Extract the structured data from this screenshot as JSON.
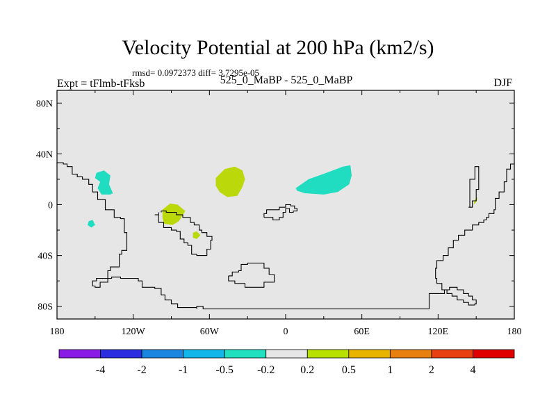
{
  "chart_data": {
    "type": "heatmap",
    "title": "Velocity Potential at 200 hPa (km2/s)",
    "stats_line": "rmsd= 0.0972373 diff= 3.7295e-05",
    "left_label": "Expt = tFlmb-tFksb",
    "center_label": "525_0_MaBP - 525_0_MaBP",
    "right_label": "DJF",
    "xlim": [
      -180,
      180
    ],
    "ylim": [
      -90,
      90
    ],
    "x_ticks": [
      {
        "value": -180,
        "label": "180"
      },
      {
        "value": -120,
        "label": "120W"
      },
      {
        "value": -60,
        "label": "60W"
      },
      {
        "value": 0,
        "label": "0"
      },
      {
        "value": 60,
        "label": "60E"
      },
      {
        "value": 120,
        "label": "120E"
      },
      {
        "value": 180,
        "label": "180"
      }
    ],
    "y_ticks": [
      {
        "value": 80,
        "label": "80N"
      },
      {
        "value": 40,
        "label": "40N"
      },
      {
        "value": 0,
        "label": "0"
      },
      {
        "value": -40,
        "label": "40S"
      },
      {
        "value": -80,
        "label": "80S"
      }
    ],
    "background_color": "#e6e6e6",
    "colorbar": {
      "levels": [
        "-4",
        "-2",
        "-1",
        "-0.5",
        "-0.2",
        "0.2",
        "0.5",
        "1",
        "2",
        "4"
      ],
      "colors": [
        "#8a1be6",
        "#2a2ee0",
        "#1a86e0",
        "#12b6e8",
        "#20e0c0",
        "#e6e6e6",
        "#b8e000",
        "#e8b400",
        "#e88010",
        "#e84010",
        "#e00000"
      ]
    },
    "regions": [
      {
        "name": "positive-region-atlantic",
        "class": "0.2 to 0.5",
        "color": "#bbd80a",
        "points": [
          [
            -55,
            21
          ],
          [
            -48,
            28
          ],
          [
            -40,
            30
          ],
          [
            -34,
            27
          ],
          [
            -32,
            20
          ],
          [
            -34,
            14
          ],
          [
            -38,
            7
          ],
          [
            -46,
            6
          ],
          [
            -52,
            10
          ],
          [
            -55,
            15
          ]
        ]
      },
      {
        "name": "positive-region-south-america",
        "class": "0.2 to 0.5",
        "color": "#bbd80a",
        "points": [
          [
            -97,
            -4
          ],
          [
            -91,
            1
          ],
          [
            -85,
            0
          ],
          [
            -79,
            -5
          ],
          [
            -84,
            -13
          ],
          [
            -89,
            -16
          ],
          [
            -96,
            -15
          ],
          [
            -97,
            -10
          ]
        ]
      },
      {
        "name": "positive-region-small",
        "class": "0.2 to 0.5",
        "color": "#bbd80a",
        "points": [
          [
            -73,
            -22
          ],
          [
            -70,
            -21
          ],
          [
            -67,
            -24
          ],
          [
            -70,
            -27
          ],
          [
            -73,
            -26
          ]
        ]
      },
      {
        "name": "positive-region-west-pacific",
        "class": "0.2 to 0.5",
        "color": "#bbd80a",
        "points": [
          [
            147,
            -1
          ],
          [
            150,
            2
          ],
          [
            151,
            6
          ],
          [
            149,
            4
          ],
          [
            148,
            0
          ]
        ]
      },
      {
        "name": "negative-region-north-pacific",
        "class": "-0.5 to -0.2",
        "color": "#20dcc0",
        "points": [
          [
            -149,
            25
          ],
          [
            -143,
            27
          ],
          [
            -138,
            23
          ],
          [
            -139,
            16
          ],
          [
            -136,
            9
          ],
          [
            -138,
            8
          ],
          [
            -145,
            8
          ],
          [
            -148,
            13
          ],
          [
            -146,
            18
          ],
          [
            -150,
            21
          ]
        ]
      },
      {
        "name": "negative-region-tropical-pacific",
        "class": "-0.5 to -0.2",
        "color": "#20dcc0",
        "points": [
          [
            -155,
            -13
          ],
          [
            -152,
            -12
          ],
          [
            -150,
            -16
          ],
          [
            -153,
            -18
          ],
          [
            -156,
            -16
          ]
        ]
      },
      {
        "name": "negative-region-africa",
        "class": "-0.5 to -0.2",
        "color": "#20dcc0",
        "points": [
          [
            8,
            13
          ],
          [
            18,
            20
          ],
          [
            32,
            25
          ],
          [
            45,
            30
          ],
          [
            51,
            31
          ],
          [
            52,
            23
          ],
          [
            50,
            16
          ],
          [
            41,
            10
          ],
          [
            30,
            8
          ],
          [
            15,
            9
          ],
          [
            9,
            11
          ]
        ]
      }
    ],
    "coastlines": [
      {
        "name": "coastline-americas",
        "points": [
          [
            -180,
            33
          ],
          [
            -175,
            32
          ],
          [
            -172,
            30
          ],
          [
            -168,
            28
          ],
          [
            -168,
            24
          ],
          [
            -164,
            24
          ],
          [
            -164,
            22
          ],
          [
            -160,
            20
          ],
          [
            -155,
            16
          ],
          [
            -152,
            16
          ],
          [
            -152,
            10
          ],
          [
            -148,
            4
          ],
          [
            -142,
            -4
          ],
          [
            -135,
            -10
          ],
          [
            -130,
            -11
          ],
          [
            -127,
            -16
          ],
          [
            -127,
            -22
          ],
          [
            -125,
            -28
          ],
          [
            -125,
            -36
          ],
          [
            -129,
            -39
          ],
          [
            -131,
            -49
          ],
          [
            -138,
            -52
          ],
          [
            -140,
            -57
          ],
          [
            -140,
            -61
          ],
          [
            -143,
            -61
          ],
          [
            -146,
            -65
          ],
          [
            -150,
            -64
          ],
          [
            -152,
            -60
          ],
          [
            -149,
            -58
          ],
          [
            -137,
            -57
          ],
          [
            -130,
            -58
          ],
          [
            -121,
            -58
          ],
          [
            -116,
            -60
          ],
          [
            -113,
            -65
          ],
          [
            -103,
            -66
          ],
          [
            -98,
            -71
          ],
          [
            -95,
            -75
          ],
          [
            -90,
            -78
          ],
          [
            -85,
            -81
          ],
          [
            -70,
            -82
          ],
          [
            -70,
            -80
          ],
          [
            -65,
            -82
          ],
          [
            -50,
            -82
          ],
          [
            -40,
            -82
          ],
          [
            -20,
            -82
          ],
          [
            0,
            -82
          ],
          [
            40,
            -82
          ],
          [
            105,
            -82
          ],
          [
            113,
            -82
          ],
          [
            113,
            -70
          ],
          [
            120,
            -70
          ],
          [
            125,
            -67
          ],
          [
            129,
            -65
          ],
          [
            135,
            -67
          ],
          [
            140,
            -70
          ],
          [
            144,
            -72
          ],
          [
            147,
            -75
          ],
          [
            150,
            -78
          ],
          [
            149,
            -79
          ]
        ]
      },
      {
        "name": "coastline-asia",
        "points": [
          [
            149,
            -79
          ],
          [
            144,
            -77
          ],
          [
            140,
            -75
          ],
          [
            135,
            -72
          ],
          [
            131,
            -70
          ],
          [
            127,
            -67
          ],
          [
            123,
            -62
          ],
          [
            119,
            -58
          ],
          [
            118,
            -50
          ],
          [
            119,
            -44
          ],
          [
            124,
            -40
          ],
          [
            128,
            -34
          ],
          [
            132,
            -28
          ],
          [
            136,
            -24
          ],
          [
            141,
            -20
          ],
          [
            147,
            -16
          ],
          [
            152,
            -14
          ],
          [
            156,
            -12
          ],
          [
            158,
            -10
          ],
          [
            160,
            -7
          ],
          [
            164,
            -4
          ],
          [
            165,
            5
          ],
          [
            168,
            10
          ],
          [
            172,
            18
          ],
          [
            174,
            28
          ],
          [
            177,
            32
          ],
          [
            180,
            33
          ]
        ]
      },
      {
        "name": "coastline-east-pacific-block",
        "points": [
          [
            144,
            -2
          ],
          [
            145,
            13
          ],
          [
            145,
            20
          ],
          [
            149,
            24
          ],
          [
            149,
            30
          ],
          [
            152,
            30
          ],
          [
            152,
            20
          ],
          [
            152,
            12
          ],
          [
            150,
            3
          ],
          [
            147,
            -2
          ],
          [
            144,
            -2
          ]
        ]
      },
      {
        "name": "coastline-south-america-east",
        "points": [
          [
            -103,
            -8
          ],
          [
            -100,
            -6
          ],
          [
            -100,
            -14
          ],
          [
            -96,
            -18
          ],
          [
            -90,
            -20
          ],
          [
            -86,
            -21
          ],
          [
            -83,
            -27
          ],
          [
            -80,
            -30
          ],
          [
            -77,
            -32
          ],
          [
            -74,
            -39
          ],
          [
            -70,
            -40
          ],
          [
            -62,
            -35
          ],
          [
            -59,
            -28
          ],
          [
            -58,
            -25
          ],
          [
            -62,
            -22
          ],
          [
            -66,
            -20
          ],
          [
            -68,
            -16
          ],
          [
            -72,
            -14
          ],
          [
            -75,
            -10
          ],
          [
            -81,
            -8
          ],
          [
            -86,
            -6
          ],
          [
            -90,
            -6
          ],
          [
            -94,
            -5
          ],
          [
            -98,
            -6
          ]
        ]
      },
      {
        "name": "coastline-africa",
        "points": [
          [
            -17,
            -10
          ],
          [
            -10,
            -12
          ],
          [
            -5,
            -10
          ],
          [
            -2,
            -6
          ],
          [
            0,
            -3
          ],
          [
            3,
            -6
          ],
          [
            6,
            -5
          ],
          [
            9,
            -3
          ],
          [
            7,
            -1
          ],
          [
            4,
            0
          ],
          [
            0,
            -2
          ],
          [
            -5,
            -4
          ],
          [
            -11,
            -4
          ],
          [
            -15,
            -7
          ],
          [
            -17,
            -10
          ]
        ]
      },
      {
        "name": "coastline-antarctic-island",
        "points": [
          [
            -45,
            -56
          ],
          [
            -42,
            -53
          ],
          [
            -37,
            -52
          ],
          [
            -35,
            -47
          ],
          [
            -30,
            -46
          ],
          [
            -20,
            -46
          ],
          [
            -17,
            -50
          ],
          [
            -13,
            -55
          ],
          [
            -9,
            -61
          ],
          [
            -17,
            -65
          ],
          [
            -32,
            -62
          ],
          [
            -40,
            -60
          ],
          [
            -45,
            -56
          ]
        ]
      }
    ]
  }
}
